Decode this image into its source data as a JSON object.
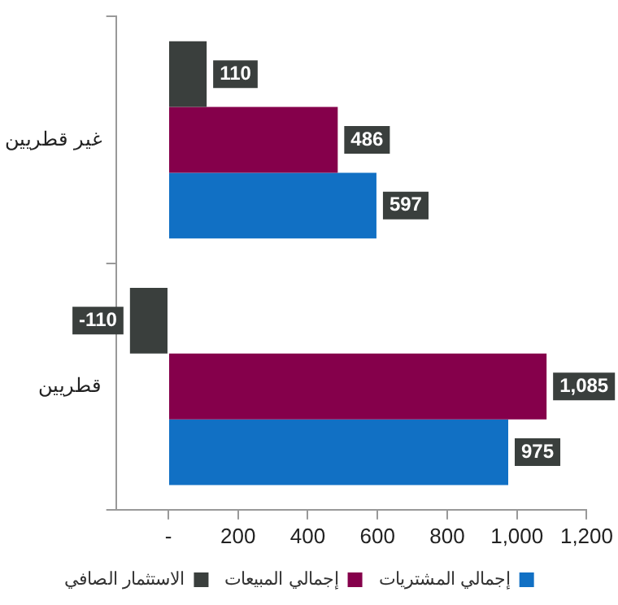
{
  "chart_data": {
    "type": "bar",
    "orientation": "horizontal",
    "categories": [
      "غير قطريين",
      "قطريين"
    ],
    "series": [
      {
        "name": "الاستثمار الصافي",
        "color": "#3a3f3d",
        "values": [
          110,
          -110
        ],
        "value_labels": [
          "110",
          "-110"
        ]
      },
      {
        "name": "إجمالي المبيعات",
        "color": "#85004b",
        "values": [
          486,
          1085
        ],
        "value_labels": [
          "486",
          "1,085"
        ]
      },
      {
        "name": "إجمالي المشتريات",
        "color": "#1170c4",
        "values": [
          597,
          975
        ],
        "value_labels": [
          "597",
          "975"
        ]
      }
    ],
    "xlim": [
      -150,
      1200
    ],
    "xticks": [
      {
        "value": 0,
        "label": "-"
      },
      200,
      400,
      600,
      800,
      {
        "value": 1000,
        "label": "1,000"
      },
      {
        "value": 1200,
        "label": "1,200"
      }
    ],
    "grid": false,
    "legend": "bottom"
  }
}
